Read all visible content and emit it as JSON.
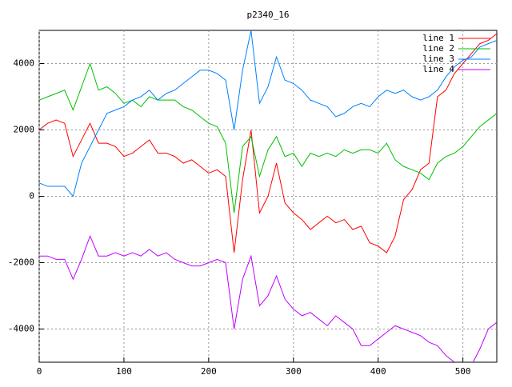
{
  "chart_data": {
    "type": "line",
    "title": "p2340_16",
    "x": [
      0,
      10,
      20,
      30,
      40,
      50,
      60,
      70,
      80,
      90,
      100,
      110,
      120,
      130,
      140,
      150,
      160,
      170,
      180,
      190,
      200,
      210,
      220,
      230,
      240,
      250,
      260,
      270,
      280,
      290,
      300,
      310,
      320,
      330,
      340,
      350,
      360,
      370,
      380,
      390,
      400,
      410,
      420,
      430,
      440,
      450,
      460,
      470,
      480,
      490,
      500,
      510,
      520,
      530,
      540
    ],
    "series": [
      {
        "name": "line 1",
        "color": "#ff0000",
        "values": [
          2000,
          2200,
          2300,
          2200,
          1200,
          1700,
          2200,
          1600,
          1600,
          1500,
          1200,
          1300,
          1500,
          1700,
          1300,
          1300,
          1200,
          1000,
          1100,
          900,
          700,
          800,
          600,
          -1700,
          500,
          2000,
          -500,
          0,
          1000,
          -200,
          -500,
          -700,
          -1000,
          -800,
          -600,
          -800,
          -700,
          -1000,
          -900,
          -1400,
          -1500,
          -1700,
          -1200,
          -100,
          200,
          800,
          1000,
          3000,
          3200,
          3700,
          4000,
          4300,
          4600,
          4700,
          4900
        ]
      },
      {
        "name": "line 2",
        "color": "#00c000",
        "values": [
          2900,
          3000,
          3100,
          3200,
          2600,
          3300,
          4000,
          3200,
          3300,
          3100,
          2800,
          2900,
          2700,
          3000,
          2900,
          2900,
          2900,
          2700,
          2600,
          2400,
          2200,
          2100,
          1600,
          -500,
          1500,
          1800,
          600,
          1400,
          1800,
          1200,
          1300,
          900,
          1300,
          1200,
          1300,
          1200,
          1400,
          1300,
          1400,
          1400,
          1300,
          1600,
          1100,
          900,
          800,
          700,
          500,
          1000,
          1200,
          1300,
          1500,
          1800,
          2100,
          2300,
          2500
        ]
      },
      {
        "name": "line 3",
        "color": "#0080ff",
        "values": [
          400,
          300,
          300,
          300,
          0,
          1000,
          1500,
          2000,
          2500,
          2600,
          2700,
          2900,
          3000,
          3200,
          2900,
          3100,
          3200,
          3400,
          3600,
          3800,
          3800,
          3700,
          3500,
          2000,
          3800,
          5000,
          2800,
          3300,
          4200,
          3500,
          3400,
          3200,
          2900,
          2800,
          2700,
          2400,
          2500,
          2700,
          2800,
          2700,
          3000,
          3200,
          3100,
          3200,
          3000,
          2900,
          3000,
          3200,
          3600,
          3900,
          4100,
          4200,
          4500,
          4600,
          4700
        ]
      },
      {
        "name": "line 4",
        "color": "#c000ff",
        "values": [
          -1800,
          -1800,
          -1900,
          -1900,
          -2500,
          -1900,
          -1200,
          -1800,
          -1800,
          -1700,
          -1800,
          -1700,
          -1800,
          -1600,
          -1800,
          -1700,
          -1900,
          -2000,
          -2100,
          -2100,
          -2000,
          -1900,
          -2000,
          -4000,
          -2500,
          -1800,
          -3300,
          -3000,
          -2400,
          -3100,
          -3400,
          -3600,
          -3500,
          -3700,
          -3900,
          -3600,
          -3800,
          -4000,
          -4500,
          -4500,
          -4300,
          -4100,
          -3900,
          -4000,
          -4100,
          -4200,
          -4400,
          -4500,
          -4800,
          -5000,
          -5200,
          -5100,
          -4600,
          -4000,
          -3800
        ]
      }
    ],
    "xlim": [
      0,
      540
    ],
    "xticks": [
      0,
      100,
      200,
      300,
      400,
      500
    ],
    "ylim": [
      -5000,
      5000
    ],
    "yticks": [
      -4000,
      -2000,
      0,
      2000,
      4000
    ],
    "grid": true,
    "legend": "top-right"
  }
}
